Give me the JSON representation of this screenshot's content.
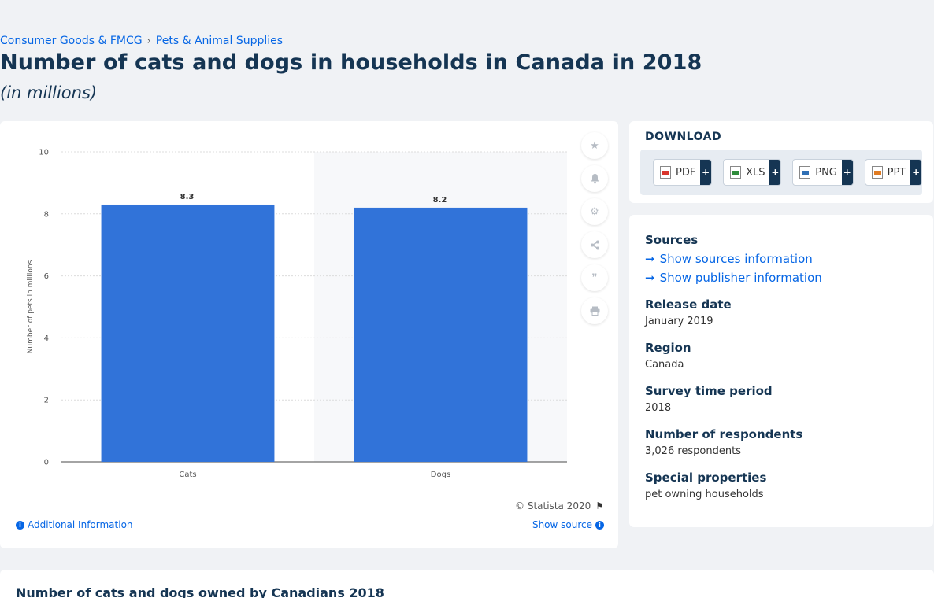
{
  "breadcrumb": {
    "items": [
      "Consumer Goods & FMCG",
      "Pets & Animal Supplies"
    ],
    "separator": "›"
  },
  "page": {
    "title": "Number of cats and dogs in households in Canada in 2018",
    "subtitle": "(in millions)"
  },
  "chart_data": {
    "type": "bar",
    "categories": [
      "Cats",
      "Dogs"
    ],
    "values": [
      8.3,
      8.2
    ],
    "data_labels": [
      "8.3",
      "8.2"
    ],
    "title": "",
    "xlabel": "",
    "ylabel": "Number of pets in millions",
    "ylim": [
      0,
      10
    ],
    "yticks": [
      0,
      2,
      4,
      6,
      8,
      10
    ],
    "grid": true,
    "bar_color": "#3173d9"
  },
  "chart_footer": {
    "credit": "© Statista 2020",
    "additional_info": "Additional Information",
    "show_source": "Show source"
  },
  "side_tools": [
    "star-icon",
    "bell-icon",
    "gear-icon",
    "share-icon",
    "quote-icon",
    "print-icon"
  ],
  "download": {
    "title": "DOWNLOAD",
    "formats": [
      {
        "label": "PDF",
        "color": "#d9342b"
      },
      {
        "label": "XLS",
        "color": "#2e8b3a"
      },
      {
        "label": "PNG",
        "color": "#2f6fb5"
      },
      {
        "label": "PPT",
        "color": "#e07b22"
      }
    ],
    "plus": "+"
  },
  "info": {
    "sources_label": "Sources",
    "show_sources": "Show sources information",
    "show_publisher": "Show publisher information",
    "release_date_label": "Release date",
    "release_date": "January 2019",
    "region_label": "Region",
    "region": "Canada",
    "survey_period_label": "Survey time period",
    "survey_period": "2018",
    "respondents_label": "Number of respondents",
    "respondents": "3,026 respondents",
    "special_label": "Special properties",
    "special": "pet owning households"
  },
  "bottom": {
    "title": "Number of cats and dogs owned by Canadians 2018"
  },
  "colors": {
    "accent": "#0666e5",
    "heading": "#153553",
    "bar": "#3173d9"
  }
}
